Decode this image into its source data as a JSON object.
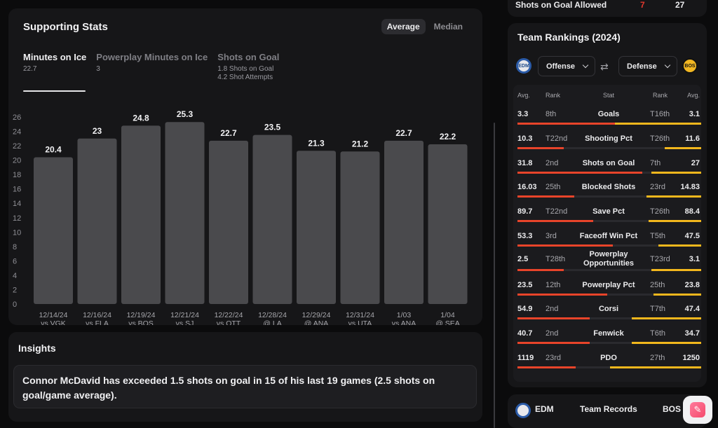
{
  "supporting_stats": {
    "title": "Supporting Stats",
    "toggle": {
      "average": "Average",
      "median": "Median"
    },
    "tabs": [
      {
        "label": "Minutes on Ice",
        "sub1": "22.7",
        "sub2": ""
      },
      {
        "label": "Powerplay Minutes on Ice",
        "sub1": "3",
        "sub2": ""
      },
      {
        "label": "Shots on Goal",
        "sub1": "1.8 Shots on Goal",
        "sub2": "4.2 Shot Attempts"
      }
    ]
  },
  "chart_data": {
    "type": "bar",
    "categories": [
      [
        "12/14/24",
        "vs VGK"
      ],
      [
        "12/16/24",
        "vs FLA"
      ],
      [
        "12/19/24",
        "vs BOS"
      ],
      [
        "12/21/24",
        "vs SJ"
      ],
      [
        "12/22/24",
        "vs OTT"
      ],
      [
        "12/28/24",
        "@ LA"
      ],
      [
        "12/29/24",
        "@ ANA"
      ],
      [
        "12/31/24",
        "vs UTA"
      ],
      [
        "1/03",
        "vs ANA"
      ],
      [
        "1/04",
        "@ SEA"
      ]
    ],
    "values": [
      20.4,
      23,
      24.8,
      25.3,
      22.7,
      23.5,
      21.3,
      21.2,
      22.7,
      22.2
    ],
    "data_labels": [
      "20.4",
      "23",
      "24.8",
      "25.3",
      "22.7",
      "23.5",
      "21.3",
      "21.2",
      "22.7",
      "22.2"
    ],
    "y_ticks": [
      0,
      2,
      4,
      6,
      8,
      10,
      12,
      14,
      16,
      18,
      20,
      22,
      24,
      26
    ],
    "ylim": [
      0,
      26
    ],
    "title": "",
    "xlabel": "",
    "ylabel": "",
    "bar_color": "#4a4a4d"
  },
  "insights": {
    "title": "Insights",
    "text": "Connor McDavid has exceeded 1.5 shots on goal in 15 of his last 19 games (2.5 shots on goal/game average)."
  },
  "top_strip": {
    "label": "Shots on Goal Allowed",
    "value1": "7",
    "value2": "27"
  },
  "team_rankings": {
    "title": "Team Rankings (2024)",
    "left_team": "EDM",
    "right_team": "BOS",
    "left_select": "Offense",
    "right_select": "Defense",
    "headers": {
      "avg": "Avg.",
      "rank": "Rank",
      "stat": "Stat",
      "rank2": "Rank",
      "avg2": "Avg."
    },
    "rows": [
      {
        "avg": "3.3",
        "rank": "8th",
        "stat": "Goals",
        "rank2": "T16th",
        "avg2": "3.1",
        "o": 0.77,
        "d": 0.52
      },
      {
        "avg": "10.3",
        "rank": "T22nd",
        "stat": "Shooting Pct",
        "rank2": "T26th",
        "avg2": "11.6",
        "o": 0.36,
        "d": 0.22
      },
      {
        "avg": "31.8",
        "rank": "2nd",
        "stat": "Shots on Goal",
        "rank2": "7th",
        "avg2": "27",
        "o": 0.97,
        "d": 0.3
      },
      {
        "avg": "16.03",
        "rank": "25th",
        "stat": "Blocked Shots",
        "rank2": "23rd",
        "avg2": "14.83",
        "o": 0.44,
        "d": 0.33
      },
      {
        "avg": "89.7",
        "rank": "T22nd",
        "stat": "Save Pct",
        "rank2": "T26th",
        "avg2": "88.4",
        "o": 0.59,
        "d": 0.32
      },
      {
        "avg": "53.3",
        "rank": "3rd",
        "stat": "Faceoff Win Pct",
        "rank2": "T5th",
        "avg2": "47.5",
        "o": 0.74,
        "d": 0.26
      },
      {
        "avg": "2.5",
        "rank": "T28th",
        "stat": "Powerplay Opportunities",
        "rank2": "T23rd",
        "avg2": "3.1",
        "o": 0.36,
        "d": 0.3
      },
      {
        "avg": "23.5",
        "rank": "12th",
        "stat": "Powerplay Pct",
        "rank2": "25th",
        "avg2": "23.8",
        "o": 0.7,
        "d": 0.29
      },
      {
        "avg": "54.9",
        "rank": "2nd",
        "stat": "Corsi",
        "rank2": "T7th",
        "avg2": "47.4",
        "o": 0.56,
        "d": 0.42
      },
      {
        "avg": "40.7",
        "rank": "2nd",
        "stat": "Fenwick",
        "rank2": "T6th",
        "avg2": "34.7",
        "o": 0.56,
        "d": 0.42
      },
      {
        "avg": "1119",
        "rank": "23rd",
        "stat": "PDO",
        "rank2": "27th",
        "avg2": "1250",
        "o": 0.45,
        "d": 0.55
      }
    ]
  },
  "team_records": {
    "left": "EDM",
    "title": "Team Records",
    "right": "BOS"
  },
  "colors": {
    "offense": "#e8442a",
    "defense": "#f2b71d",
    "allowed": "#e1382e"
  },
  "icons": {
    "swap": "swap-arrows-icon",
    "fab": "ticket-icon"
  }
}
